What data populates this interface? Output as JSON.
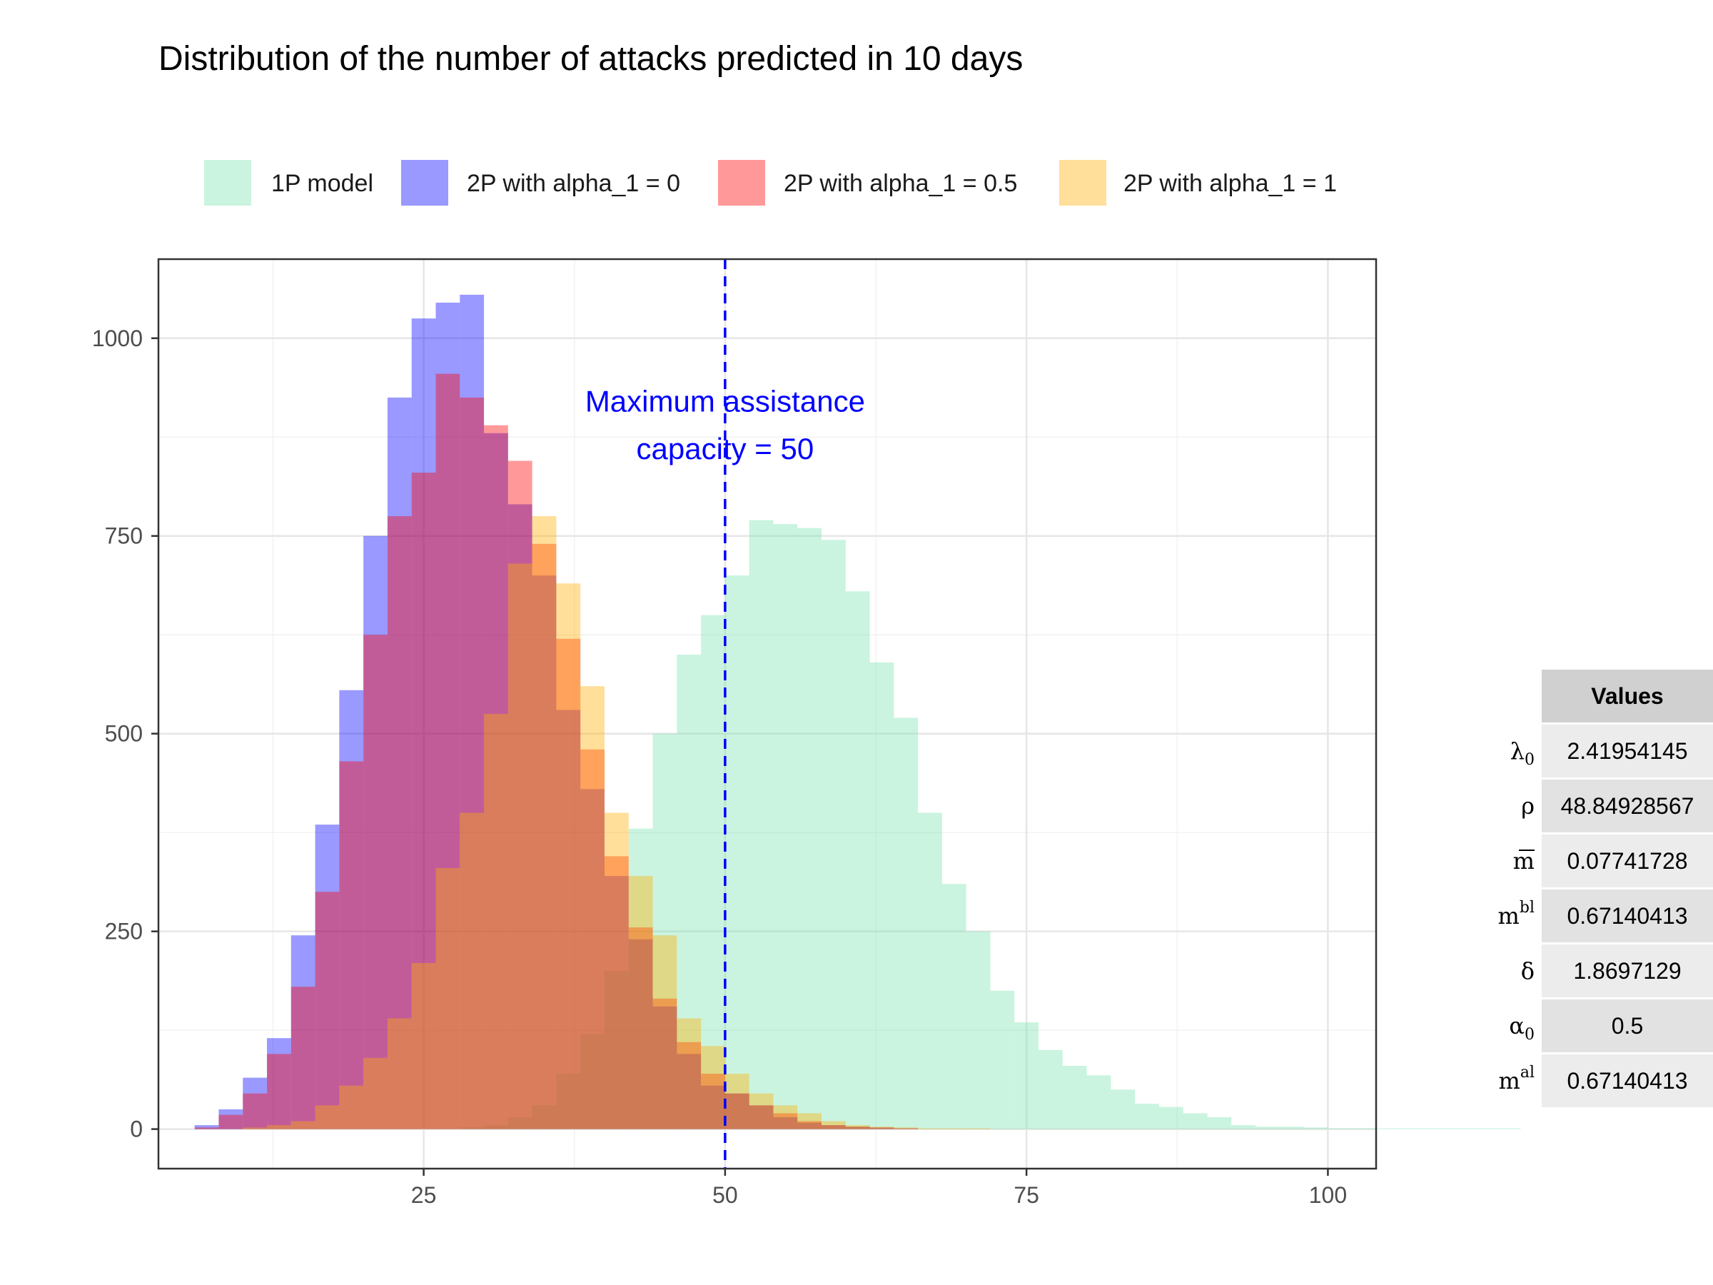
{
  "chart_data": {
    "type": "bar",
    "title": "Distribution of the number of attacks predicted in 10 days",
    "xlabel": "",
    "ylabel": "",
    "xlim": [
      3,
      104
    ],
    "ylim": [
      -50,
      1100
    ],
    "x_ticks": [
      25,
      50,
      75,
      100
    ],
    "y_ticks": [
      0,
      250,
      500,
      750,
      1000
    ],
    "grid": true,
    "legend_position": "top",
    "bin_width": 2,
    "bin_start": 6,
    "series": [
      {
        "name": "1P model",
        "color": "#7BE3AE",
        "values": [
          0,
          0,
          0,
          0,
          0,
          0,
          0,
          0,
          0,
          0,
          0,
          2,
          5,
          15,
          30,
          70,
          120,
          200,
          380,
          500,
          600,
          650,
          700,
          770,
          765,
          760,
          745,
          680,
          590,
          520,
          400,
          310,
          250,
          175,
          135,
          100,
          80,
          68,
          50,
          32,
          28,
          20,
          15,
          5,
          3,
          3,
          2,
          1,
          1,
          1,
          1,
          1,
          1,
          1,
          1
        ]
      },
      {
        "name": "2P with alpha_1 = 0",
        "color": "#0000FF",
        "values": [
          5,
          25,
          65,
          115,
          245,
          385,
          555,
          750,
          925,
          1025,
          1045,
          1055,
          880,
          790,
          700,
          530,
          430,
          320,
          240,
          155,
          95,
          55,
          45,
          30,
          15,
          8,
          5,
          3,
          2,
          1,
          0,
          0,
          0,
          0,
          0,
          0,
          0,
          0,
          0,
          0,
          0,
          0,
          0,
          0,
          0,
          0,
          0,
          0,
          0,
          0,
          0,
          0,
          0,
          0,
          0
        ]
      },
      {
        "name": "2P with alpha_1 = 0.5",
        "color": "#FF0000",
        "values": [
          2,
          18,
          45,
          95,
          180,
          300,
          465,
          625,
          775,
          830,
          955,
          925,
          890,
          845,
          740,
          620,
          480,
          345,
          255,
          165,
          110,
          70,
          45,
          30,
          20,
          10,
          5,
          3,
          2,
          1,
          0,
          0,
          0,
          0,
          0,
          0,
          0,
          0,
          0,
          0,
          0,
          0,
          0,
          0,
          0,
          0,
          0,
          0,
          0,
          0,
          0,
          0,
          0,
          0,
          0
        ]
      },
      {
        "name": "2P with alpha_1 = 1",
        "color": "#FFB000",
        "values": [
          0,
          0,
          2,
          5,
          10,
          30,
          55,
          90,
          140,
          210,
          330,
          400,
          525,
          715,
          775,
          690,
          560,
          400,
          320,
          245,
          140,
          105,
          70,
          45,
          30,
          20,
          10,
          5,
          3,
          2,
          1,
          1,
          1,
          0,
          0,
          0,
          0,
          0,
          0,
          0,
          0,
          0,
          0,
          0,
          0,
          0,
          0,
          0,
          0,
          0,
          0,
          0,
          0,
          0,
          0
        ]
      }
    ],
    "annotations": [
      {
        "text": "Maximum assistance",
        "x": 50,
        "y": 920
      },
      {
        "text": "capacity = 50",
        "x": 50,
        "y": 860
      }
    ],
    "reference_line": {
      "x": 50,
      "color": "#0000FF",
      "style": "dashed"
    }
  },
  "values_table": {
    "header": "Values",
    "rows": [
      {
        "param": "λ",
        "sub": "0",
        "sup": "",
        "bar": false,
        "value": "2.41954145"
      },
      {
        "param": "ρ",
        "sub": "",
        "sup": "",
        "bar": false,
        "value": "48.84928567"
      },
      {
        "param": "m",
        "sub": "",
        "sup": "",
        "bar": true,
        "value": "0.07741728"
      },
      {
        "param": "m",
        "sub": "",
        "sup": "bl",
        "bar": false,
        "value": "0.67140413"
      },
      {
        "param": "δ",
        "sub": "",
        "sup": "",
        "bar": false,
        "value": "1.8697129"
      },
      {
        "param": "α",
        "sub": "0",
        "sup": "",
        "bar": false,
        "value": "0.5"
      },
      {
        "param": "m",
        "sub": "",
        "sup": "al",
        "bar": false,
        "value": "0.67140413"
      }
    ]
  }
}
